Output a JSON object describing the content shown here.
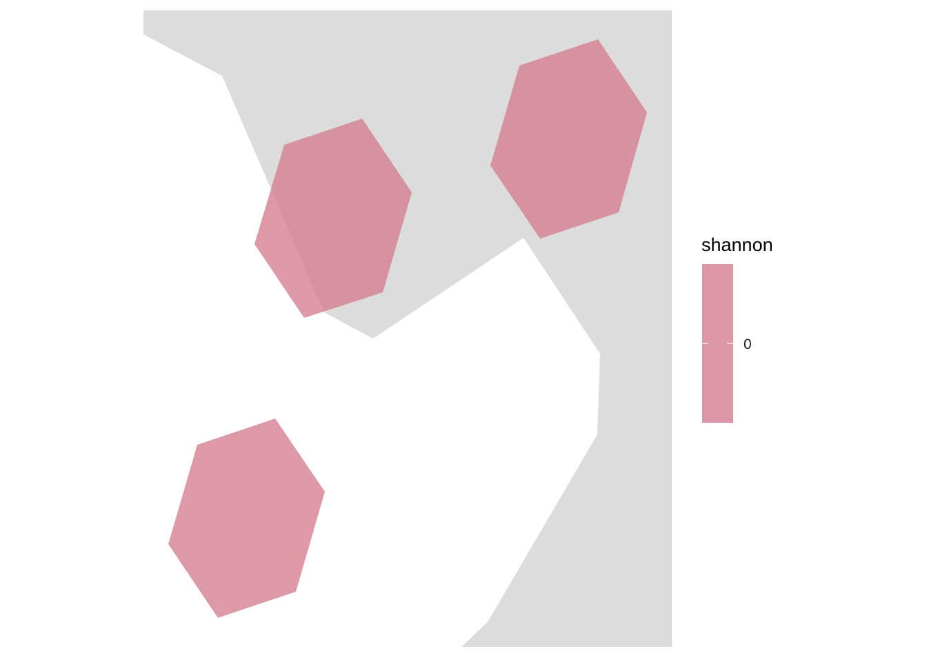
{
  "map": {
    "land_color": "#dcdcdc",
    "background_color": "#ffffff",
    "hexagon_fill": "#d4808f",
    "hexagon_opacity": 0.8
  },
  "legend": {
    "title": "shannon",
    "tick_label": "0",
    "swatch_color": "#dc97a6",
    "tick_color": "#ffffff"
  }
}
